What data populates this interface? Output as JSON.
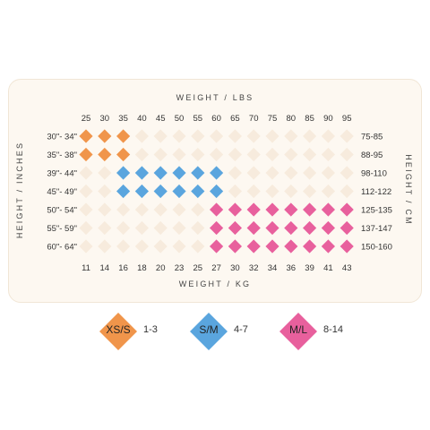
{
  "chart_data": {
    "type": "heatmap",
    "title": "",
    "top_axis_title": "WEIGHT / LBS",
    "bottom_axis_title": "WEIGHT / KG",
    "left_axis_title": "HEIGHT / INCHES",
    "right_axis_title": "HEIGHT / CM",
    "lbs": [
      "25",
      "30",
      "35",
      "40",
      "45",
      "50",
      "55",
      "60",
      "65",
      "70",
      "75",
      "80",
      "85",
      "90",
      "95"
    ],
    "kg": [
      "11",
      "14",
      "16",
      "18",
      "20",
      "23",
      "25",
      "27",
      "30",
      "32",
      "34",
      "36",
      "39",
      "41",
      "43"
    ],
    "height_inches": [
      "30\"- 34\"",
      "35\"- 38\"",
      "39\"- 44\"",
      "45\"- 49\"",
      "50\"- 54\"",
      "55\"- 59\"",
      "60\"- 64\""
    ],
    "height_cm": [
      "75-85",
      "88-95",
      "98-110",
      "112-122",
      "125-135",
      "137-147",
      "150-160"
    ],
    "grid": [
      [
        "XS/S",
        "XS/S",
        "XS/S",
        "",
        "",
        "",
        "",
        "",
        "",
        "",
        "",
        "",
        "",
        "",
        ""
      ],
      [
        "XS/S",
        "XS/S",
        "XS/S",
        "",
        "",
        "",
        "",
        "",
        "",
        "",
        "",
        "",
        "",
        "",
        ""
      ],
      [
        "",
        "",
        "S/M",
        "S/M",
        "S/M",
        "S/M",
        "S/M",
        "S/M",
        "",
        "",
        "",
        "",
        "",
        "",
        ""
      ],
      [
        "",
        "",
        "S/M",
        "S/M",
        "S/M",
        "S/M",
        "S/M",
        "S/M",
        "",
        "",
        "",
        "",
        "",
        "",
        ""
      ],
      [
        "",
        "",
        "",
        "",
        "",
        "",
        "",
        "M/L",
        "M/L",
        "M/L",
        "M/L",
        "M/L",
        "M/L",
        "M/L",
        "M/L"
      ],
      [
        "",
        "",
        "",
        "",
        "",
        "",
        "",
        "M/L",
        "M/L",
        "M/L",
        "M/L",
        "M/L",
        "M/L",
        "M/L",
        "M/L"
      ],
      [
        "",
        "",
        "",
        "",
        "",
        "",
        "",
        "M/L",
        "M/L",
        "M/L",
        "M/L",
        "M/L",
        "M/L",
        "M/L",
        "M/L"
      ]
    ],
    "empty_color": "#f7ebdd",
    "legend": [
      {
        "size": "XS/S",
        "range": "1-3",
        "color": "#f0954b"
      },
      {
        "size": "S/M",
        "range": "4-7",
        "color": "#5aa5de"
      },
      {
        "size": "M/L",
        "range": "8-14",
        "color": "#e8609d"
      }
    ]
  }
}
